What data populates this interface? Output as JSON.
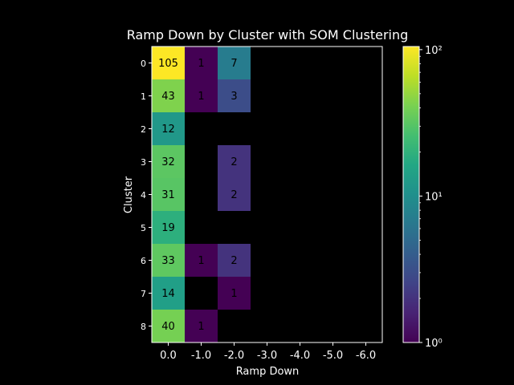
{
  "chart_data": {
    "type": "heatmap",
    "title": "Ramp Down by Cluster with SOM Clustering",
    "xlabel": "Ramp Down",
    "ylabel": "Cluster",
    "x_categories": [
      "0.0",
      "-1.0",
      "-2.0",
      "-3.0",
      "-4.0",
      "-5.0",
      "-6.0"
    ],
    "y_categories": [
      "0",
      "1",
      "2",
      "3",
      "4",
      "5",
      "6",
      "7",
      "8"
    ],
    "values": [
      [
        105,
        1,
        7,
        null,
        null,
        null,
        null
      ],
      [
        43,
        1,
        3,
        null,
        null,
        null,
        null
      ],
      [
        12,
        null,
        null,
        null,
        null,
        null,
        null
      ],
      [
        32,
        null,
        2,
        null,
        null,
        null,
        null
      ],
      [
        31,
        null,
        2,
        null,
        null,
        null,
        null
      ],
      [
        19,
        null,
        null,
        null,
        null,
        null,
        null
      ],
      [
        33,
        1,
        2,
        null,
        null,
        null,
        null
      ],
      [
        14,
        null,
        1,
        null,
        null,
        null,
        null
      ],
      [
        40,
        1,
        null,
        null,
        null,
        null,
        null
      ]
    ],
    "colormap": "viridis",
    "color_scale": "log",
    "colorbar_range": [
      1,
      105
    ],
    "colorbar_ticks": [
      "10⁰",
      "10¹",
      "10²"
    ],
    "grid": false
  }
}
